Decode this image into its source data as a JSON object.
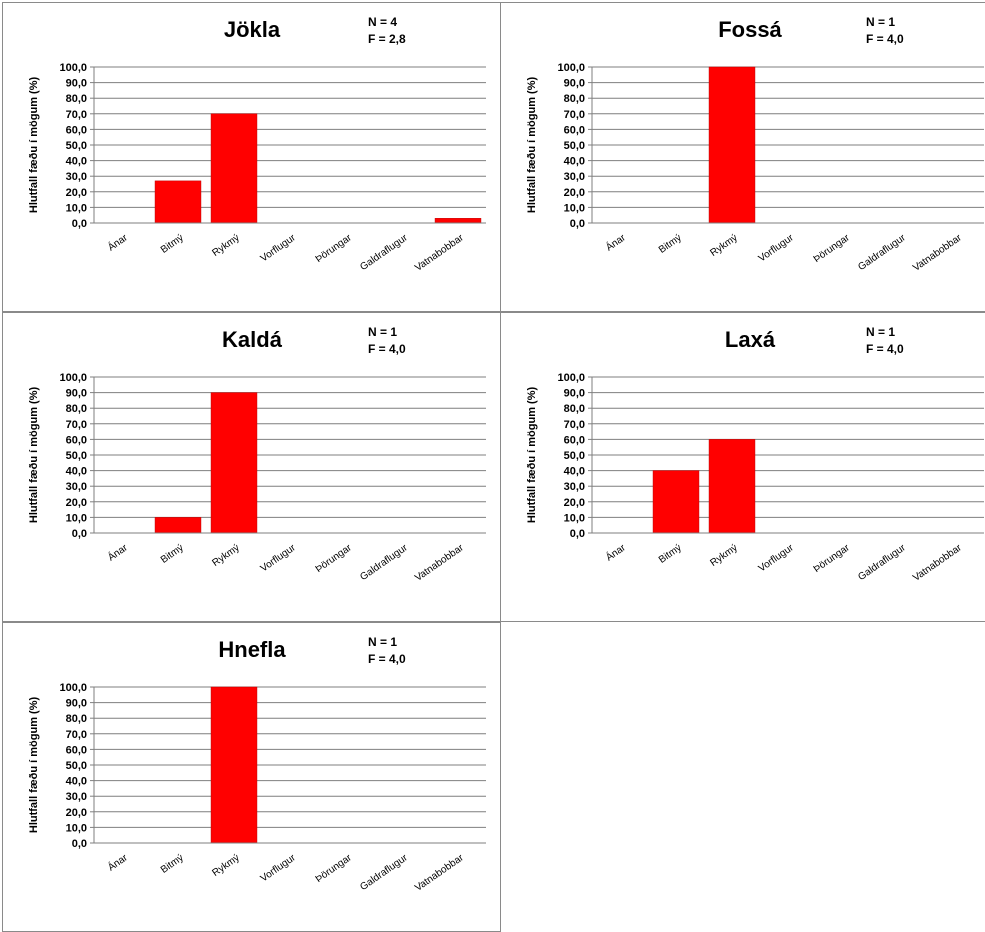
{
  "chart_data": [
    {
      "type": "bar",
      "title": "Jökla",
      "stats": [
        "N = 4",
        "F = 2,8"
      ],
      "ylabel": "Hlutfall fæðu í mögum (%)",
      "ylim": [
        0,
        100
      ],
      "yticks": [
        "0,0",
        "10,0",
        "20,0",
        "30,0",
        "40,0",
        "50,0",
        "60,0",
        "70,0",
        "80,0",
        "90,0",
        "100,0"
      ],
      "categories": [
        "Ánar",
        "Bitmý",
        "Rykmý",
        "Vorflugur",
        "Þörungar",
        "Galdraflugur",
        "Vatnabobbar"
      ],
      "values": [
        0,
        27,
        70,
        0,
        0,
        0,
        3
      ],
      "grid": true,
      "bar_color": "#ff0000"
    },
    {
      "type": "bar",
      "title": "Fossá",
      "stats": [
        "N = 1",
        "F = 4,0"
      ],
      "ylabel": "Hlutfall fæðu í mögum (%)",
      "ylim": [
        0,
        100
      ],
      "yticks": [
        "0,0",
        "10,0",
        "20,0",
        "30,0",
        "40,0",
        "50,0",
        "60,0",
        "70,0",
        "80,0",
        "90,0",
        "100,0"
      ],
      "categories": [
        "Ánar",
        "Bitmý",
        "Rykmý",
        "Vorflugur",
        "Þörungar",
        "Galdraflugur",
        "Vatnabobbar"
      ],
      "values": [
        0,
        0,
        100,
        0,
        0,
        0,
        0
      ],
      "grid": true,
      "bar_color": "#ff0000"
    },
    {
      "type": "bar",
      "title": "Kaldá",
      "stats": [
        "N = 1",
        "F = 4,0"
      ],
      "ylabel": "Hlutfall fæðu í mögum (%)",
      "ylim": [
        0,
        100
      ],
      "yticks": [
        "0,0",
        "10,0",
        "20,0",
        "30,0",
        "40,0",
        "50,0",
        "60,0",
        "70,0",
        "80,0",
        "90,0",
        "100,0"
      ],
      "categories": [
        "Ánar",
        "Bitmý",
        "Rykmý",
        "Vorflugur",
        "Þörungar",
        "Galdraflugur",
        "Vatnabobbar"
      ],
      "values": [
        0,
        10,
        90,
        0,
        0,
        0,
        0
      ],
      "grid": true,
      "bar_color": "#ff0000"
    },
    {
      "type": "bar",
      "title": "Laxá",
      "stats": [
        "N = 1",
        "F = 4,0"
      ],
      "ylabel": "Hlutfall fæðu í mögum (%)",
      "ylim": [
        0,
        100
      ],
      "yticks": [
        "0,0",
        "10,0",
        "20,0",
        "30,0",
        "40,0",
        "50,0",
        "60,0",
        "70,0",
        "80,0",
        "90,0",
        "100,0"
      ],
      "categories": [
        "Ánar",
        "Bitmý",
        "Rykmý",
        "Vorflugur",
        "Þörungar",
        "Galdraflugur",
        "Vatnabobbar"
      ],
      "values": [
        0,
        40,
        60,
        0,
        0,
        0,
        0
      ],
      "grid": true,
      "bar_color": "#ff0000"
    },
    {
      "type": "bar",
      "title": "Hnefla",
      "stats": [
        "N = 1",
        "F = 4,0"
      ],
      "ylabel": "Hlutfall fæðu í mögum (%)",
      "ylim": [
        0,
        100
      ],
      "yticks": [
        "0,0",
        "10,0",
        "20,0",
        "30,0",
        "40,0",
        "50,0",
        "60,0",
        "70,0",
        "80,0",
        "90,0",
        "100,0"
      ],
      "categories": [
        "Ánar",
        "Bitmý",
        "Rykmý",
        "Vorflugur",
        "Þörungar",
        "Galdraflugur",
        "Vatnabobbar"
      ],
      "values": [
        0,
        0,
        100,
        0,
        0,
        0,
        0
      ],
      "grid": true,
      "bar_color": "#ff0000"
    }
  ]
}
